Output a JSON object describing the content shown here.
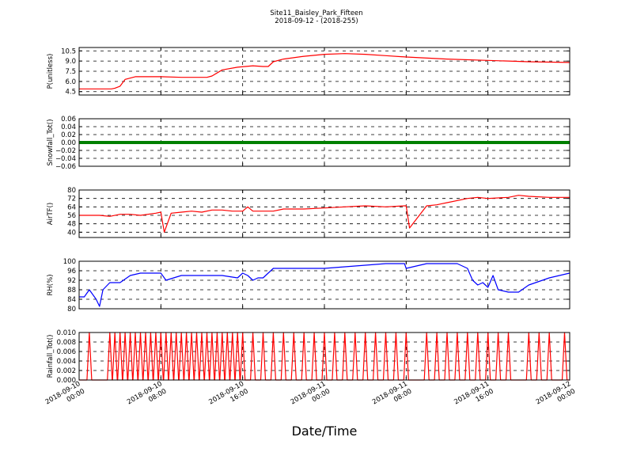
{
  "figure": {
    "title_line1": "Site11_Baisley_Park_Fifteen",
    "title_line2": "2018-09-12 - (2018-255)",
    "xlabel": "Date/Time"
  },
  "chart_data": [
    {
      "type": "line",
      "ylabel": "P(unitless)",
      "ylim": [
        4.0,
        11.0
      ],
      "yticks": [
        "4.5",
        "6.0",
        "7.5",
        "9.0",
        "10.5"
      ],
      "color": "#ff0000",
      "grid": true,
      "x": [
        "2018-09-10 00:00",
        "2018-09-10 01:30",
        "2018-09-10 02:30",
        "2018-09-10 03:10",
        "2018-09-10 03:30",
        "2018-09-10 04:00",
        "2018-09-10 04:30",
        "2018-09-10 05:30",
        "2018-09-10 07:00",
        "2018-09-10 08:00",
        "2018-09-10 10:00",
        "2018-09-10 12:00",
        "2018-09-10 12:30",
        "2018-09-10 13:00",
        "2018-09-10 14:00",
        "2018-09-10 15:30",
        "2018-09-10 17:00",
        "2018-09-10 18:00",
        "2018-09-10 18:30",
        "2018-09-10 19:00",
        "2018-09-10 20:00",
        "2018-09-10 22:00",
        "2018-09-11 00:00",
        "2018-09-11 02:00",
        "2018-09-11 04:00",
        "2018-09-11 06:00",
        "2018-09-11 08:00",
        "2018-09-11 12:00",
        "2018-09-11 16:00",
        "2018-09-11 20:00",
        "2018-09-11 23:59"
      ],
      "values": [
        4.9,
        4.9,
        4.9,
        4.9,
        5.0,
        5.3,
        6.3,
        6.7,
        6.7,
        6.7,
        6.6,
        6.6,
        6.6,
        6.8,
        7.7,
        8.1,
        8.3,
        8.2,
        8.2,
        8.9,
        9.3,
        9.7,
        10.0,
        10.1,
        10.0,
        9.8,
        9.6,
        9.3,
        9.1,
        8.9,
        8.8
      ]
    },
    {
      "type": "line",
      "ylabel": "Snowfall_Tot()",
      "ylim": [
        -0.06,
        0.06
      ],
      "yticks": [
        "−0.06",
        "−0.04",
        "−0.02",
        "0.00",
        "0.02",
        "0.04",
        "0.06"
      ],
      "color": "#008000",
      "grid": true,
      "x": [
        "2018-09-10 00:00",
        "2018-09-11 23:59"
      ],
      "values": [
        0.0,
        0.0
      ]
    },
    {
      "type": "line",
      "ylabel": "AirTF()",
      "ylim": [
        35,
        80
      ],
      "yticks": [
        "40",
        "48",
        "56",
        "64",
        "72",
        "80"
      ],
      "color": "#ff0000",
      "grid": true,
      "x": [
        "2018-09-10 00:00",
        "2018-09-10 01:00",
        "2018-09-10 02:00",
        "2018-09-10 03:00",
        "2018-09-10 04:00",
        "2018-09-10 05:00",
        "2018-09-10 06:00",
        "2018-09-10 07:30",
        "2018-09-10 08:00",
        "2018-09-10 08:20",
        "2018-09-10 09:00",
        "2018-09-10 10:00",
        "2018-09-10 11:00",
        "2018-09-10 12:00",
        "2018-09-10 13:00",
        "2018-09-10 14:00",
        "2018-09-10 15:00",
        "2018-09-10 16:00",
        "2018-09-10 16:30",
        "2018-09-10 17:00",
        "2018-09-10 18:00",
        "2018-09-10 19:00",
        "2018-09-10 20:00",
        "2018-09-10 22:00",
        "2018-09-11 00:00",
        "2018-09-11 02:00",
        "2018-09-11 04:00",
        "2018-09-11 06:00",
        "2018-09-11 07:50",
        "2018-09-11 08:00",
        "2018-09-11 08:20",
        "2018-09-11 10:00",
        "2018-09-11 11:00",
        "2018-09-11 11:30",
        "2018-09-11 12:00",
        "2018-09-11 14:00",
        "2018-09-11 15:00",
        "2018-09-11 16:00",
        "2018-09-11 18:00",
        "2018-09-11 19:00",
        "2018-09-11 20:00",
        "2018-09-11 22:00",
        "2018-09-11 23:59"
      ],
      "values": [
        56,
        56,
        56,
        55,
        57,
        57,
        56,
        58,
        59,
        40,
        58,
        59,
        60,
        59,
        61,
        61,
        60,
        60,
        64,
        60,
        60,
        60,
        62,
        62,
        63,
        64,
        65,
        64,
        65,
        65,
        44,
        65,
        66,
        67,
        68,
        72,
        73,
        72,
        73,
        75,
        74,
        73,
        73
      ]
    },
    {
      "type": "line",
      "ylabel": "RH(%)",
      "ylim": [
        80,
        100
      ],
      "yticks": [
        "80",
        "84",
        "88",
        "92",
        "96",
        "100"
      ],
      "color": "#0000ff",
      "grid": true,
      "x": [
        "2018-09-10 00:00",
        "2018-09-10 00:30",
        "2018-09-10 01:00",
        "2018-09-10 01:40",
        "2018-09-10 02:00",
        "2018-09-10 02:20",
        "2018-09-10 03:00",
        "2018-09-10 04:00",
        "2018-09-10 05:00",
        "2018-09-10 06:00",
        "2018-09-10 08:00",
        "2018-09-10 08:30",
        "2018-09-10 10:00",
        "2018-09-10 12:00",
        "2018-09-10 14:00",
        "2018-09-10 15:30",
        "2018-09-10 16:00",
        "2018-09-10 16:30",
        "2018-09-10 17:00",
        "2018-09-10 17:30",
        "2018-09-10 18:00",
        "2018-09-10 19:00",
        "2018-09-10 20:00",
        "2018-09-10 22:00",
        "2018-09-11 00:00",
        "2018-09-11 03:00",
        "2018-09-11 06:00",
        "2018-09-11 07:50",
        "2018-09-11 08:00",
        "2018-09-11 10:00",
        "2018-09-11 12:00",
        "2018-09-11 13:00",
        "2018-09-11 14:00",
        "2018-09-11 14:30",
        "2018-09-11 15:00",
        "2018-09-11 15:30",
        "2018-09-11 16:00",
        "2018-09-11 16:30",
        "2018-09-11 17:00",
        "2018-09-11 18:00",
        "2018-09-11 19:00",
        "2018-09-11 20:00",
        "2018-09-11 22:00",
        "2018-09-11 23:59"
      ],
      "values": [
        85,
        85,
        88,
        84,
        81,
        88,
        91,
        91,
        94,
        95,
        95,
        92,
        94,
        94,
        94,
        93,
        95,
        94,
        92,
        93,
        93,
        97,
        97,
        97,
        97,
        98,
        99,
        99,
        97,
        99,
        99,
        99,
        97,
        92,
        90,
        91,
        89,
        94,
        88,
        87,
        87,
        90,
        93,
        95
      ]
    },
    {
      "type": "line",
      "ylabel": "Rainfall_Tot()",
      "ylim": [
        0.0,
        0.01
      ],
      "yticks": [
        "0.000",
        "0.002",
        "0.004",
        "0.006",
        "0.008",
        "0.010"
      ],
      "color": "#ff0000",
      "grid": true,
      "spikes_x": [
        "2018-09-10 01:00",
        "2018-09-10 03:00",
        "2018-09-10 03:30",
        "2018-09-10 04:00",
        "2018-09-10 04:30",
        "2018-09-10 05:00",
        "2018-09-10 05:30",
        "2018-09-10 06:00",
        "2018-09-10 06:30",
        "2018-09-10 07:00",
        "2018-09-10 07:30",
        "2018-09-10 08:00",
        "2018-09-10 08:30",
        "2018-09-10 09:00",
        "2018-09-10 09:30",
        "2018-09-10 10:00",
        "2018-09-10 10:30",
        "2018-09-10 11:00",
        "2018-09-10 11:30",
        "2018-09-10 12:00",
        "2018-09-10 12:30",
        "2018-09-10 13:00",
        "2018-09-10 13:30",
        "2018-09-10 14:00",
        "2018-09-10 14:30",
        "2018-09-10 15:00",
        "2018-09-10 15:30",
        "2018-09-10 16:00",
        "2018-09-10 17:00",
        "2018-09-10 18:00",
        "2018-09-10 19:00",
        "2018-09-10 20:00",
        "2018-09-10 21:00",
        "2018-09-10 22:00",
        "2018-09-10 23:00",
        "2018-09-11 00:00",
        "2018-09-11 01:00",
        "2018-09-11 02:00",
        "2018-09-11 03:00",
        "2018-09-11 04:00",
        "2018-09-11 05:00",
        "2018-09-11 06:00",
        "2018-09-11 07:00",
        "2018-09-11 08:00",
        "2018-09-11 10:00",
        "2018-09-11 11:00",
        "2018-09-11 12:00",
        "2018-09-11 13:00",
        "2018-09-11 14:00",
        "2018-09-11 15:00",
        "2018-09-11 16:00",
        "2018-09-11 17:00",
        "2018-09-11 18:00",
        "2018-09-11 20:00",
        "2018-09-11 21:00",
        "2018-09-11 22:00",
        "2018-09-11 23:30"
      ],
      "spike_value": 0.01,
      "baseline_value": 0.0
    }
  ],
  "xaxis": {
    "range": [
      "2018-09-10 00:00",
      "2018-09-12 00:00"
    ],
    "ticks": [
      {
        "line1": "2018-09-10",
        "line2": "00:00",
        "t": "2018-09-10 00:00"
      },
      {
        "line1": "2018-09-10",
        "line2": "08:00",
        "t": "2018-09-10 08:00"
      },
      {
        "line1": "2018-09-10",
        "line2": "16:00",
        "t": "2018-09-10 16:00"
      },
      {
        "line1": "2018-09-11",
        "line2": "00:00",
        "t": "2018-09-11 00:00"
      },
      {
        "line1": "2018-09-11",
        "line2": "08:00",
        "t": "2018-09-11 08:00"
      },
      {
        "line1": "2018-09-11",
        "line2": "16:00",
        "t": "2018-09-11 16:00"
      },
      {
        "line1": "2018-09-12",
        "line2": "00:00",
        "t": "2018-09-12 00:00"
      }
    ]
  }
}
